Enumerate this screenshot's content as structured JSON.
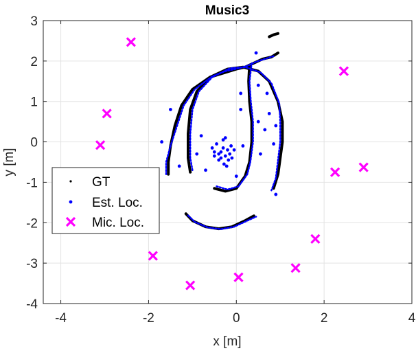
{
  "chart_data": {
    "type": "scatter",
    "title": "Music3",
    "xlabel": "x [m]",
    "ylabel": "y [m]",
    "xlim": [
      -4.4,
      4
    ],
    "ylim": [
      -4,
      3
    ],
    "xticks": [
      -4,
      -2,
      0,
      2,
      4
    ],
    "yticks": [
      -4,
      -3,
      -2,
      -1,
      0,
      1,
      2,
      3
    ],
    "xtick_labels": [
      "-4",
      "-2",
      "0",
      "2",
      "4"
    ],
    "ytick_labels": [
      "-4",
      "-3",
      "-2",
      "-1",
      "0",
      "1",
      "2",
      "3"
    ],
    "grid": true,
    "legend_position": "middle-left",
    "legend": [
      "GT",
      "Est. Loc.",
      "Mic. Loc."
    ],
    "colors": {
      "gt": "#000000",
      "est": "#0000ff",
      "mic": "#ff00ff"
    },
    "series": [
      {
        "name": "GT",
        "marker": "dot",
        "paths": [
          [
            [
              -1.55,
              -0.8
            ],
            [
              -1.55,
              -0.5
            ],
            [
              -1.5,
              -0.1
            ],
            [
              -1.4,
              0.4
            ],
            [
              -1.25,
              0.9
            ],
            [
              -1.0,
              1.3
            ],
            [
              -0.6,
              1.6
            ],
            [
              -0.3,
              1.7
            ],
            [
              0.0,
              1.8
            ],
            [
              0.2,
              1.85
            ],
            [
              0.4,
              1.95
            ],
            [
              0.6,
              2.05
            ],
            [
              0.8,
              2.1
            ],
            [
              0.95,
              2.2
            ]
          ],
          [
            [
              -1.05,
              -0.75
            ],
            [
              -1.1,
              -0.4
            ],
            [
              -1.1,
              0.2
            ],
            [
              -1.05,
              0.8
            ],
            [
              -0.9,
              1.25
            ],
            [
              -0.6,
              1.6
            ],
            [
              -0.2,
              1.8
            ],
            [
              0.15,
              1.85
            ],
            [
              0.5,
              1.75
            ],
            [
              0.75,
              1.5
            ],
            [
              0.95,
              1.0
            ],
            [
              1.05,
              0.5
            ],
            [
              1.05,
              0.0
            ],
            [
              1.0,
              -0.4
            ],
            [
              0.95,
              -0.8
            ],
            [
              0.85,
              -1.15
            ]
          ],
          [
            [
              -0.5,
              -1.15
            ],
            [
              -0.25,
              -1.22
            ],
            [
              0.0,
              -1.15
            ],
            [
              0.2,
              -0.85
            ],
            [
              0.3,
              -0.5
            ],
            [
              0.35,
              0.0
            ],
            [
              0.35,
              0.5
            ],
            [
              0.3,
              1.0
            ],
            [
              0.28,
              1.5
            ],
            [
              0.3,
              1.9
            ]
          ],
          [
            [
              -1.15,
              -1.78
            ],
            [
              -1.0,
              -1.95
            ],
            [
              -0.7,
              -2.1
            ],
            [
              -0.4,
              -2.15
            ],
            [
              -0.1,
              -2.1
            ],
            [
              0.2,
              -1.95
            ],
            [
              0.4,
              -1.83
            ]
          ],
          [
            [
              0.75,
              2.6
            ],
            [
              0.85,
              2.65
            ],
            [
              0.95,
              2.68
            ]
          ]
        ]
      },
      {
        "name": "Est. Loc.",
        "marker": "dot",
        "paths": [
          [
            [
              -1.6,
              -0.8
            ],
            [
              -1.6,
              -0.5
            ],
            [
              -1.5,
              -0.1
            ],
            [
              -1.35,
              0.4
            ],
            [
              -1.2,
              0.9
            ],
            [
              -0.95,
              1.3
            ],
            [
              -0.55,
              1.62
            ],
            [
              -0.25,
              1.75
            ],
            [
              0.05,
              1.82
            ],
            [
              0.25,
              1.88
            ],
            [
              0.45,
              1.98
            ],
            [
              0.65,
              2.05
            ],
            [
              0.85,
              2.12
            ]
          ],
          [
            [
              -1.0,
              -0.7
            ],
            [
              -1.05,
              -0.4
            ],
            [
              -1.05,
              0.2
            ],
            [
              -1.0,
              0.8
            ],
            [
              -0.85,
              1.25
            ],
            [
              -0.55,
              1.6
            ],
            [
              -0.15,
              1.82
            ],
            [
              0.2,
              1.85
            ],
            [
              0.55,
              1.72
            ],
            [
              0.8,
              1.45
            ],
            [
              0.98,
              0.95
            ],
            [
              1.0,
              0.5
            ],
            [
              1.0,
              0.0
            ],
            [
              0.95,
              -0.45
            ],
            [
              0.9,
              -0.9
            ],
            [
              0.8,
              -1.2
            ]
          ],
          [
            [
              -0.45,
              -1.1
            ],
            [
              -0.2,
              -1.18
            ],
            [
              0.05,
              -1.1
            ],
            [
              0.25,
              -0.8
            ],
            [
              0.32,
              -0.5
            ],
            [
              0.38,
              0.0
            ],
            [
              0.38,
              0.5
            ],
            [
              0.33,
              1.0
            ],
            [
              0.3,
              1.5
            ],
            [
              0.35,
              1.95
            ]
          ],
          [
            [
              -1.1,
              -1.82
            ],
            [
              -0.95,
              -1.98
            ],
            [
              -0.65,
              -2.12
            ],
            [
              -0.35,
              -2.16
            ],
            [
              -0.05,
              -2.1
            ],
            [
              0.25,
              -1.95
            ],
            [
              0.45,
              -1.85
            ]
          ]
        ],
        "cluster": [
          [
            -0.55,
            -0.15
          ],
          [
            -0.5,
            -0.35
          ],
          [
            -0.45,
            -0.05
          ],
          [
            -0.4,
            -0.45
          ],
          [
            -0.35,
            -0.25
          ],
          [
            -0.3,
            -0.15
          ],
          [
            -0.28,
            -0.55
          ],
          [
            -0.25,
            -0.35
          ],
          [
            -0.2,
            -0.2
          ],
          [
            -0.18,
            -0.45
          ],
          [
            -0.15,
            -0.3
          ],
          [
            -0.12,
            -0.1
          ],
          [
            -0.3,
            0.05
          ],
          [
            -0.4,
            -0.3
          ],
          [
            -0.22,
            -0.6
          ],
          [
            -0.35,
            -0.4
          ],
          [
            -0.5,
            -0.25
          ],
          [
            -0.1,
            -0.4
          ],
          [
            -0.05,
            -0.2
          ],
          [
            -0.25,
            0.1
          ]
        ],
        "scatter": [
          [
            -1.7,
            0.0
          ],
          [
            -1.3,
            -0.6
          ],
          [
            -0.9,
            -0.3
          ],
          [
            -0.8,
            0.15
          ],
          [
            0.1,
            0.8
          ],
          [
            0.15,
            -0.1
          ],
          [
            0.5,
            0.5
          ],
          [
            0.55,
            -0.3
          ],
          [
            0.7,
            1.2
          ],
          [
            0.75,
            0.7
          ],
          [
            0.85,
            -0.05
          ],
          [
            0.9,
            0.4
          ],
          [
            0.1,
            1.2
          ],
          [
            -0.7,
            -0.7
          ],
          [
            0.0,
            -0.85
          ],
          [
            0.45,
            2.2
          ],
          [
            0.5,
            1.4
          ],
          [
            0.65,
            0.3
          ],
          [
            0.9,
            -1.3
          ],
          [
            -1.5,
            0.8
          ]
        ]
      },
      {
        "name": "Mic. Loc.",
        "marker": "x",
        "points": [
          [
            -2.4,
            2.47
          ],
          [
            -2.95,
            0.7
          ],
          [
            -3.1,
            -0.08
          ],
          [
            -1.9,
            -2.82
          ],
          [
            -1.05,
            -3.55
          ],
          [
            0.05,
            -3.35
          ],
          [
            1.35,
            -3.12
          ],
          [
            1.8,
            -2.4
          ],
          [
            2.25,
            -0.75
          ],
          [
            2.9,
            -0.63
          ],
          [
            2.45,
            1.75
          ]
        ]
      }
    ]
  }
}
